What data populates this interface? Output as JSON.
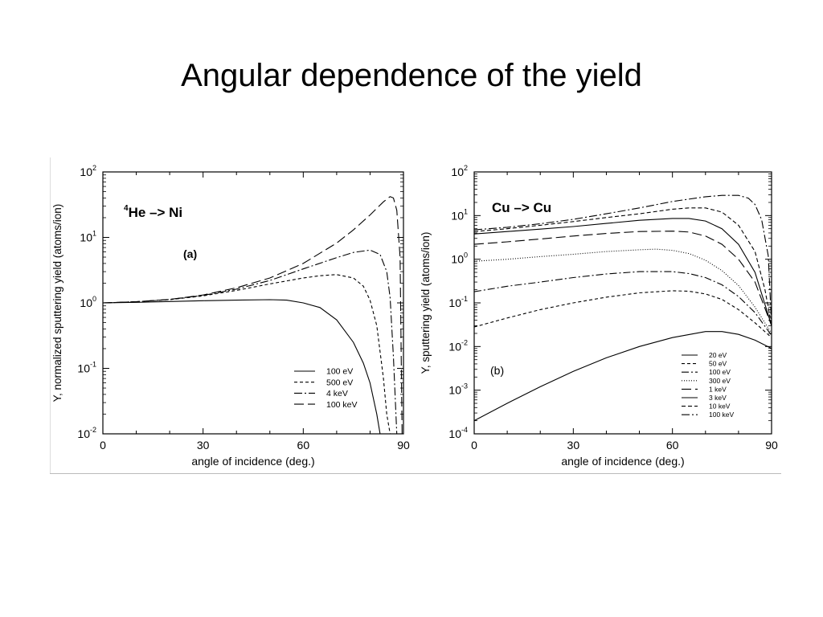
{
  "slide": {
    "title": "Angular dependence of the yield"
  },
  "chart_data": [
    {
      "type": "line",
      "panel_label": "(a)",
      "title_sup": "4",
      "title": "He –> Ni",
      "xlabel": "angle of incidence (deg.)",
      "ylabel": "Y, normalized sputtering yield (atoms/ion)",
      "xlim": [
        0,
        90
      ],
      "ylim": [
        0.01,
        100
      ],
      "yscale": "log",
      "xticks": [
        0,
        30,
        60,
        90
      ],
      "yticks": [
        {
          "value": 0.01,
          "base": "10",
          "exp": "-2"
        },
        {
          "value": 0.1,
          "base": "10",
          "exp": "-1"
        },
        {
          "value": 1,
          "base": "10",
          "exp": "0"
        },
        {
          "value": 10,
          "base": "10",
          "exp": "1"
        },
        {
          "value": 100,
          "base": "10",
          "exp": "2"
        }
      ],
      "legend_position": "lower-right",
      "series": [
        {
          "name": "100 eV",
          "dash": "none",
          "x": [
            0,
            10,
            20,
            30,
            40,
            50,
            55,
            60,
            65,
            70,
            75,
            78,
            80,
            82,
            83
          ],
          "y": [
            1.0,
            1.02,
            1.05,
            1.08,
            1.1,
            1.12,
            1.1,
            1.0,
            0.85,
            0.55,
            0.25,
            0.12,
            0.06,
            0.02,
            0.01
          ]
        },
        {
          "name": "500 eV",
          "dash": "4,3",
          "x": [
            0,
            10,
            20,
            30,
            40,
            50,
            60,
            65,
            70,
            75,
            78,
            80,
            82,
            84,
            85,
            86
          ],
          "y": [
            1.0,
            1.04,
            1.12,
            1.28,
            1.55,
            1.95,
            2.4,
            2.6,
            2.7,
            2.4,
            1.8,
            1.1,
            0.45,
            0.07,
            0.02,
            0.01
          ]
        },
        {
          "name": "4 keV",
          "dash": "10,3,2,3",
          "x": [
            0,
            10,
            20,
            30,
            40,
            50,
            60,
            70,
            75,
            80,
            83,
            85,
            86,
            87,
            88
          ],
          "y": [
            1.0,
            1.04,
            1.13,
            1.3,
            1.62,
            2.2,
            3.3,
            4.9,
            5.9,
            6.4,
            5.5,
            3.0,
            1.2,
            0.15,
            0.01
          ]
        },
        {
          "name": "100 keV",
          "dash": "12,5",
          "x": [
            0,
            10,
            20,
            30,
            40,
            50,
            60,
            70,
            75,
            80,
            84,
            86,
            87,
            88,
            89,
            89.6
          ],
          "y": [
            1.0,
            1.04,
            1.13,
            1.32,
            1.7,
            2.4,
            4.0,
            8.2,
            13,
            22,
            35,
            42,
            40,
            26,
            5,
            0.01
          ]
        }
      ]
    },
    {
      "type": "line",
      "panel_label": "(b)",
      "title": "Cu –> Cu",
      "xlabel": "angle of incidence (deg.)",
      "ylabel": "Y, sputtering yield (atoms/ion)",
      "xlim": [
        0,
        90
      ],
      "ylim": [
        0.0001,
        100
      ],
      "yscale": "log",
      "xticks": [
        0,
        30,
        60,
        90
      ],
      "yticks": [
        {
          "value": 0.0001,
          "base": "10",
          "exp": "-4"
        },
        {
          "value": 0.001,
          "base": "10",
          "exp": "-3"
        },
        {
          "value": 0.01,
          "base": "10",
          "exp": "-2"
        },
        {
          "value": 0.1,
          "base": "10",
          "exp": "-1"
        },
        {
          "value": 1,
          "base": "10",
          "exp": "0"
        },
        {
          "value": 10,
          "base": "10",
          "exp": "1"
        },
        {
          "value": 100,
          "base": "10",
          "exp": "2"
        }
      ],
      "legend_position": "lower-right",
      "series": [
        {
          "name": "20 eV",
          "dash": "none",
          "x": [
            0,
            10,
            20,
            30,
            40,
            50,
            60,
            70,
            75,
            80,
            85,
            90
          ],
          "y": [
            0.0002,
            0.0005,
            0.0012,
            0.0027,
            0.0055,
            0.01,
            0.016,
            0.022,
            0.022,
            0.019,
            0.014,
            0.009
          ]
        },
        {
          "name": "50 eV",
          "dash": "4,3",
          "x": [
            0,
            10,
            20,
            30,
            40,
            50,
            60,
            65,
            70,
            75,
            80,
            85,
            90
          ],
          "y": [
            0.028,
            0.045,
            0.07,
            0.1,
            0.135,
            0.17,
            0.19,
            0.185,
            0.16,
            0.12,
            0.07,
            0.035,
            0.016
          ]
        },
        {
          "name": "100 eV",
          "dash": "9,3,2,3",
          "x": [
            0,
            10,
            20,
            30,
            40,
            50,
            60,
            65,
            70,
            75,
            80,
            85,
            90
          ],
          "y": [
            0.18,
            0.24,
            0.3,
            0.38,
            0.46,
            0.52,
            0.52,
            0.47,
            0.38,
            0.26,
            0.14,
            0.06,
            0.018
          ]
        },
        {
          "name": "300 eV",
          "dash": "1,2",
          "x": [
            0,
            10,
            20,
            30,
            40,
            50,
            55,
            60,
            65,
            70,
            75,
            80,
            85,
            90
          ],
          "y": [
            0.9,
            1.0,
            1.15,
            1.3,
            1.5,
            1.65,
            1.7,
            1.6,
            1.35,
            0.95,
            0.55,
            0.25,
            0.08,
            0.02
          ]
        },
        {
          "name": "1 keV",
          "dash": "12,5",
          "x": [
            0,
            10,
            20,
            30,
            40,
            50,
            60,
            65,
            70,
            75,
            80,
            85,
            90
          ],
          "y": [
            2.2,
            2.5,
            2.9,
            3.4,
            3.9,
            4.3,
            4.4,
            4.2,
            3.4,
            2.2,
            1.0,
            0.3,
            0.03
          ]
        },
        {
          "name": "3 keV",
          "dash": "none",
          "x": [
            0,
            10,
            20,
            30,
            40,
            50,
            60,
            65,
            70,
            75,
            80,
            85,
            90
          ],
          "y": [
            3.8,
            4.3,
            4.9,
            5.6,
            6.6,
            7.8,
            8.6,
            8.6,
            7.5,
            5.0,
            2.2,
            0.5,
            0.03
          ]
        },
        {
          "name": "10 keV",
          "dash": "5,3",
          "x": [
            0,
            10,
            20,
            30,
            40,
            50,
            60,
            65,
            70,
            75,
            80,
            85,
            88,
            90
          ],
          "y": [
            4.3,
            5.0,
            6.0,
            7.3,
            9.0,
            11,
            14,
            15,
            15,
            12,
            6,
            1.5,
            0.2,
            0.03
          ]
        },
        {
          "name": "100 keV",
          "dash": "10,3,2,3",
          "x": [
            0,
            10,
            20,
            30,
            40,
            50,
            60,
            70,
            75,
            80,
            83,
            85,
            87,
            89,
            90
          ],
          "y": [
            4.7,
            5.4,
            6.5,
            8.2,
            11,
            15,
            21,
            27,
            29,
            29,
            25,
            18,
            8,
            1.2,
            0.03
          ]
        }
      ]
    }
  ]
}
